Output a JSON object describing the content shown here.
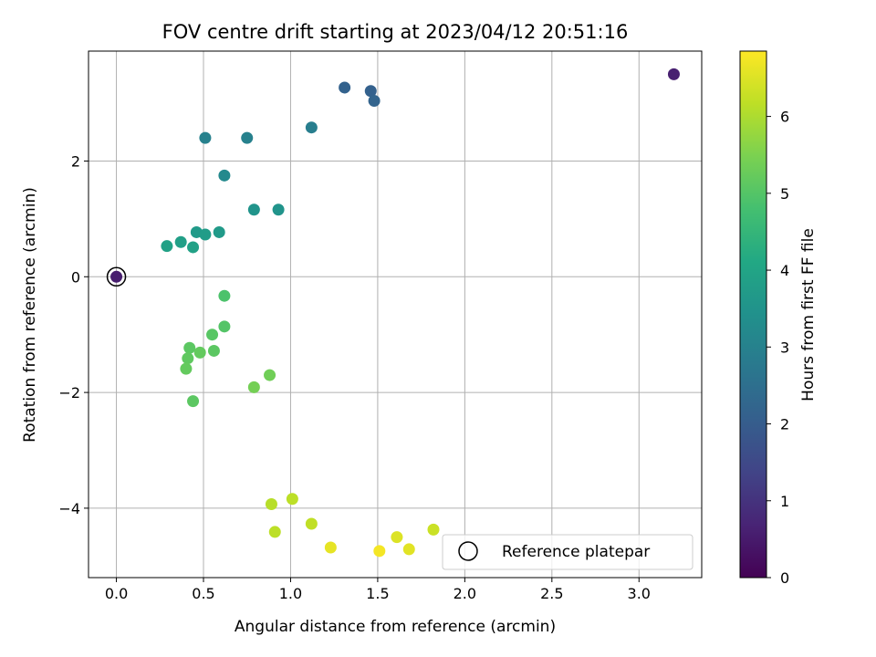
{
  "chart_data": {
    "type": "scatter",
    "title": "FOV centre drift starting at 2023/04/12 20:51:16",
    "xlabel": "Angular distance from reference (arcmin)",
    "ylabel": "Rotation from reference (arcmin)",
    "xlim": [
      -0.16,
      3.36
    ],
    "ylim": [
      -5.2,
      3.9
    ],
    "xticks": [
      0.0,
      0.5,
      1.0,
      1.5,
      2.0,
      2.5,
      3.0
    ],
    "xtick_labels": [
      "0.0",
      "0.5",
      "1.0",
      "1.5",
      "2.0",
      "2.5",
      "3.0"
    ],
    "yticks": [
      -4,
      -2,
      0,
      2
    ],
    "ytick_labels": [
      "−4",
      "−2",
      "0",
      "2"
    ],
    "grid": true,
    "colormap": "viridis",
    "colorbar": {
      "label": "Hours from first FF file",
      "range": [
        0,
        6.85
      ],
      "ticks": [
        0,
        1,
        2,
        3,
        4,
        5,
        6
      ],
      "tick_labels": [
        "0",
        "1",
        "2",
        "3",
        "4",
        "5",
        "6"
      ]
    },
    "legend": {
      "position": "lower-right",
      "entries": [
        {
          "label": "Reference platepar",
          "marker": "open-circle"
        }
      ]
    },
    "reference_point": {
      "x": 0.0,
      "y": 0.0
    },
    "points": [
      {
        "x": 0.0,
        "y": 0.0,
        "t": 0.55
      },
      {
        "x": 3.2,
        "y": 3.5,
        "t": 0.6
      },
      {
        "x": 1.31,
        "y": 3.27,
        "t": 2.15
      },
      {
        "x": 1.46,
        "y": 3.21,
        "t": 2.1
      },
      {
        "x": 1.48,
        "y": 3.04,
        "t": 2.2
      },
      {
        "x": 1.12,
        "y": 2.58,
        "t": 2.9
      },
      {
        "x": 0.51,
        "y": 2.4,
        "t": 3.0
      },
      {
        "x": 0.75,
        "y": 2.4,
        "t": 3.0
      },
      {
        "x": 0.62,
        "y": 1.75,
        "t": 3.2
      },
      {
        "x": 0.79,
        "y": 1.16,
        "t": 3.5
      },
      {
        "x": 0.93,
        "y": 1.16,
        "t": 3.5
      },
      {
        "x": 0.46,
        "y": 0.77,
        "t": 3.7
      },
      {
        "x": 0.51,
        "y": 0.73,
        "t": 3.75
      },
      {
        "x": 0.59,
        "y": 0.77,
        "t": 3.7
      },
      {
        "x": 0.37,
        "y": 0.6,
        "t": 3.85
      },
      {
        "x": 0.29,
        "y": 0.53,
        "t": 3.9
      },
      {
        "x": 0.44,
        "y": 0.51,
        "t": 3.9
      },
      {
        "x": 0.62,
        "y": -0.33,
        "t": 4.9
      },
      {
        "x": 0.62,
        "y": -0.86,
        "t": 5.0
      },
      {
        "x": 0.55,
        "y": -1.0,
        "t": 5.05
      },
      {
        "x": 0.42,
        "y": -1.23,
        "t": 5.1
      },
      {
        "x": 0.56,
        "y": -1.28,
        "t": 5.1
      },
      {
        "x": 0.48,
        "y": -1.31,
        "t": 5.2
      },
      {
        "x": 0.41,
        "y": -1.41,
        "t": 5.15
      },
      {
        "x": 0.4,
        "y": -1.59,
        "t": 5.2
      },
      {
        "x": 0.88,
        "y": -1.7,
        "t": 5.35
      },
      {
        "x": 0.79,
        "y": -1.91,
        "t": 5.4
      },
      {
        "x": 0.44,
        "y": -2.15,
        "t": 5.1
      },
      {
        "x": 1.01,
        "y": -3.84,
        "t": 6.15
      },
      {
        "x": 0.89,
        "y": -3.93,
        "t": 6.1
      },
      {
        "x": 1.12,
        "y": -4.27,
        "t": 6.2
      },
      {
        "x": 0.91,
        "y": -4.41,
        "t": 6.15
      },
      {
        "x": 1.82,
        "y": -4.37,
        "t": 6.3
      },
      {
        "x": 1.61,
        "y": -4.5,
        "t": 6.5
      },
      {
        "x": 1.23,
        "y": -4.68,
        "t": 6.6
      },
      {
        "x": 1.68,
        "y": -4.71,
        "t": 6.55
      },
      {
        "x": 1.51,
        "y": -4.74,
        "t": 6.75
      }
    ]
  }
}
